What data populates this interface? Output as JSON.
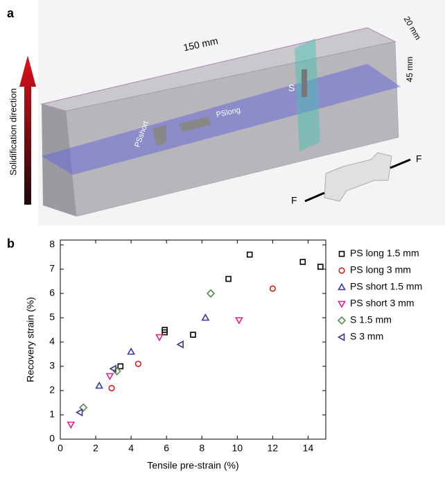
{
  "figure": {
    "panel_a": "a",
    "panel_b": "b",
    "length": "150 mm",
    "depth": "20 mm",
    "height": "45 mm",
    "s_label": "S",
    "ps_long": "PSlong",
    "ps_short": "PSshort",
    "direction": "Solidification direction",
    "force_left": "F",
    "force_right": "F"
  },
  "chart_data": {
    "type": "scatter",
    "x_label": "Tensile pre-strain (%)",
    "y_label": "Recovery strain (%)",
    "xlim": [
      0,
      15
    ],
    "ylim": [
      0,
      8.2
    ],
    "xticks": [
      0,
      2,
      4,
      6,
      8,
      10,
      12,
      14
    ],
    "yticks": [
      0,
      1,
      2,
      3,
      4,
      5,
      6,
      7,
      8
    ],
    "series": [
      {
        "name": "PS long 1.5 mm",
        "color": "#000000",
        "marker": "square",
        "x": [
          3.4,
          5.9,
          5.9,
          7.5,
          9.5,
          10.7,
          13.7,
          14.7
        ],
        "values": [
          3.0,
          4.5,
          4.4,
          4.3,
          6.6,
          7.6,
          7.3,
          7.1
        ]
      },
      {
        "name": "PS long 3 mm",
        "color": "#d62020",
        "marker": "circle",
        "x": [
          2.9,
          4.4,
          12.0
        ],
        "values": [
          2.1,
          3.1,
          6.2
        ]
      },
      {
        "name": "PS short 1.5 mm",
        "color": "#3535a5",
        "marker": "triangle-up",
        "x": [
          2.2,
          4.0,
          8.2
        ],
        "values": [
          2.2,
          3.6,
          5.0
        ]
      },
      {
        "name": "PS short 3 mm",
        "color": "#e0208a",
        "marker": "triangle-down",
        "x": [
          0.6,
          2.8,
          5.6,
          10.1
        ],
        "values": [
          0.6,
          2.6,
          4.2,
          4.9
        ]
      },
      {
        "name": "S 1.5 mm",
        "color": "#5a8a50",
        "marker": "diamond",
        "x": [
          1.3,
          3.2,
          8.5
        ],
        "values": [
          1.3,
          2.8,
          6.0
        ]
      },
      {
        "name": "S 3 mm",
        "color": "#3a3a80",
        "marker": "triangle-left",
        "x": [
          1.1,
          3.0,
          6.8
        ],
        "values": [
          1.1,
          2.9,
          3.9
        ]
      }
    ]
  }
}
